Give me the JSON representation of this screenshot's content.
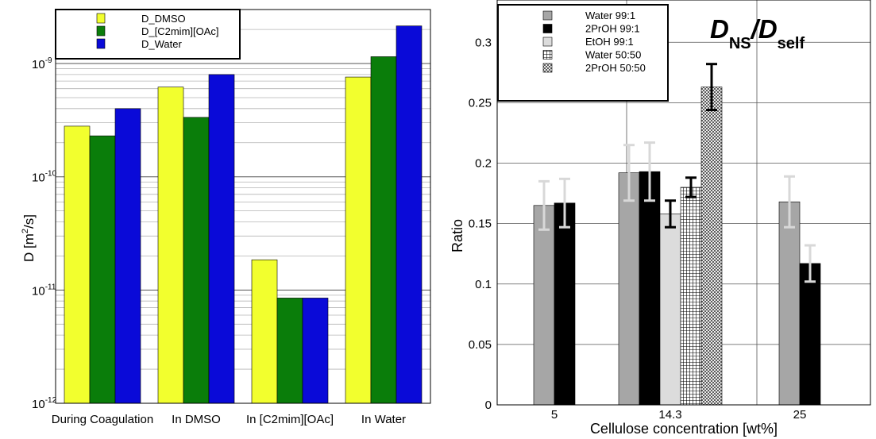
{
  "chart_data": [
    {
      "type": "bar",
      "yscale": "log",
      "ylim": [
        1e-12,
        3e-09
      ],
      "ylabel_main": "D [m",
      "ylabel_sup": "2",
      "ylabel_tail": "/s]",
      "yticks": [
        {
          "value": 1e-12,
          "base": "10",
          "exp": "-12"
        },
        {
          "value": 1e-11,
          "base": "10",
          "exp": "-11"
        },
        {
          "value": 1e-10,
          "base": "10",
          "exp": "-10"
        },
        {
          "value": 1e-09,
          "base": "10",
          "exp": "-9"
        }
      ],
      "categories": [
        "During Coagulation",
        "In DMSO",
        "In [C2mim][OAc]",
        "In Water"
      ],
      "series": [
        {
          "name": "D_DMSO",
          "color": "#f2ff2e",
          "values": [
            2.8e-10,
            6.2e-10,
            1.85e-11,
            7.6e-10
          ]
        },
        {
          "name": "D_[C2mim][OAc]",
          "color": "#0a7d0a",
          "values": [
            2.3e-10,
            3.35e-10,
            8.5e-12,
            1.15e-09
          ]
        },
        {
          "name": "D_Water",
          "color": "#0a0ad8",
          "values": [
            4e-10,
            8e-10,
            8.5e-12,
            2.15e-09
          ]
        }
      ],
      "grid": true,
      "legend_position": "top-left"
    },
    {
      "type": "bar",
      "title_main_1": "D",
      "title_sub_1": "NS",
      "title_slash": "/",
      "title_main_2": "D",
      "title_sub_2": "self",
      "xlabel": "Cellulose concentration [wt%]",
      "ylabel": "Ratio",
      "ylim": [
        0,
        0.335
      ],
      "yticks": [
        "0",
        "0.05",
        "0.1",
        "0.15",
        "0.2",
        "0.25",
        "0.3"
      ],
      "categories": [
        "5",
        "14.3",
        "25"
      ],
      "series": [
        {
          "name": "Water 99:1",
          "pattern": "gray",
          "values": [
            0.165,
            0.192,
            0.168
          ],
          "errors": [
            0.02,
            0.023,
            0.021
          ],
          "error_color": "#d8d8d8"
        },
        {
          "name": "2PrOH 99:1",
          "pattern": "black",
          "values": [
            0.167,
            0.193,
            0.117
          ],
          "errors": [
            0.02,
            0.024,
            0.015
          ],
          "error_color": "#d8d8d8"
        },
        {
          "name": "EtOH 99:1",
          "pattern": "lightgray",
          "values": [
            null,
            0.158,
            null
          ],
          "errors": [
            null,
            0.011,
            null
          ],
          "error_color": "#000000"
        },
        {
          "name": "Water 50:50",
          "pattern": "grid",
          "values": [
            null,
            0.18,
            null
          ],
          "errors": [
            null,
            0.008,
            null
          ],
          "error_color": "#000000"
        },
        {
          "name": "2PrOH 50:50",
          "pattern": "crosshatch",
          "values": [
            null,
            0.263,
            null
          ],
          "errors": [
            null,
            0.019,
            null
          ],
          "error_color": "#000000"
        }
      ],
      "grid": true,
      "legend_position": "top-left"
    }
  ]
}
